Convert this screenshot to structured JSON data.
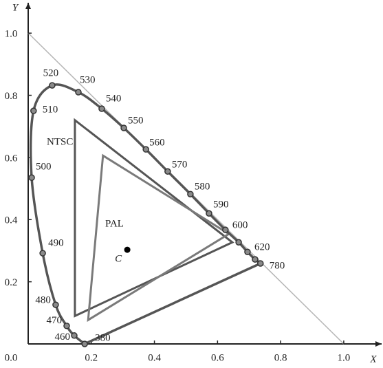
{
  "chart_data": {
    "type": "scatter",
    "x_label": "X",
    "y_label": "Y",
    "xlim": [
      0,
      1.12
    ],
    "ylim": [
      0,
      1.1
    ],
    "xticks": [
      {
        "value": 0,
        "label": "0.0"
      },
      0.2,
      0.4,
      0.6,
      0.8,
      {
        "value": 1,
        "label": "1.0"
      }
    ],
    "yticks": [
      0.2,
      0.4,
      0.6,
      0.8,
      {
        "value": 1,
        "label": "1.0"
      }
    ],
    "x": [
      0.179,
      0.146,
      0.122,
      0.087,
      0.046,
      0.011,
      0.017,
      0.076,
      0.159,
      0.233,
      0.303,
      0.373,
      0.442,
      0.514,
      0.573,
      0.625,
      0.667,
      0.695,
      0.719,
      0.736
    ],
    "y": [
      0.0,
      0.027,
      0.058,
      0.126,
      0.292,
      0.535,
      0.75,
      0.832,
      0.81,
      0.757,
      0.695,
      0.626,
      0.555,
      0.482,
      0.42,
      0.367,
      0.327,
      0.296,
      0.272,
      0.259
    ],
    "labels": [
      "380",
      "460",
      "470",
      "480",
      "490",
      "500",
      "510",
      "520",
      "530",
      "540",
      "550",
      "560",
      "570",
      "580",
      "590",
      "600",
      null,
      "620",
      null,
      "780"
    ],
    "color": "#555555",
    "triangles": [
      {
        "name": "NTSC",
        "color": "#555555",
        "x": [
          0.148,
          0.148,
          0.647
        ],
        "y": [
          0.72,
          0.09,
          0.327
        ]
      },
      {
        "name": "PAL",
        "color": "#7a7a7a",
        "x": [
          0.237,
          0.19,
          0.636
        ],
        "y": [
          0.606,
          0.077,
          0.354
        ]
      }
    ],
    "white_point": {
      "name": "C",
      "x": 0.314,
      "y": 0.303
    }
  }
}
